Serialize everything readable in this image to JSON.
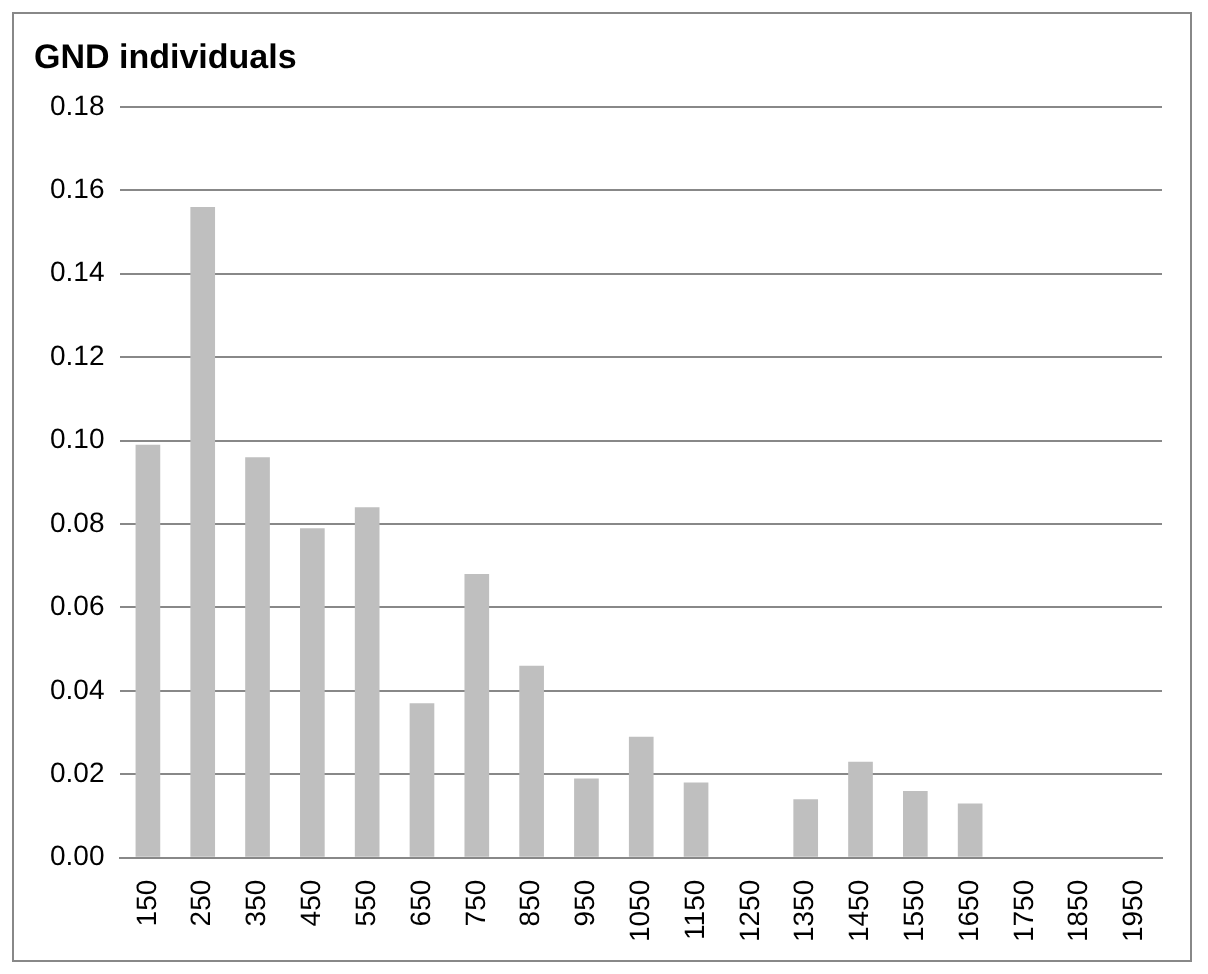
{
  "chart_data": {
    "type": "bar",
    "title": "GND individuals",
    "categories": [
      "150",
      "250",
      "350",
      "450",
      "550",
      "650",
      "750",
      "850",
      "950",
      "1050",
      "1150",
      "1250",
      "1350",
      "1450",
      "1550",
      "1650",
      "1750",
      "1850",
      "1950"
    ],
    "values": [
      0.099,
      0.156,
      0.096,
      0.079,
      0.084,
      0.037,
      0.068,
      0.046,
      0.019,
      0.029,
      0.018,
      0,
      0.014,
      0.023,
      0.016,
      0.013,
      0,
      0,
      0
    ],
    "color": "#bfbfbf",
    "ylim": [
      0,
      0.18
    ],
    "yticks": [
      {
        "value": 0,
        "label": "0.00"
      },
      {
        "value": 0.02,
        "label": "0.02"
      },
      {
        "value": 0.04,
        "label": "0.04"
      },
      {
        "value": 0.06,
        "label": "0.06"
      },
      {
        "value": 0.08,
        "label": "0.08"
      },
      {
        "value": 0.1,
        "label": "0.10"
      },
      {
        "value": 0.12,
        "label": "0.12"
      },
      {
        "value": 0.14,
        "label": "0.14"
      },
      {
        "value": 0.16,
        "label": "0.16"
      },
      {
        "value": 0.18,
        "label": "0.18"
      }
    ],
    "grid": "y"
  }
}
